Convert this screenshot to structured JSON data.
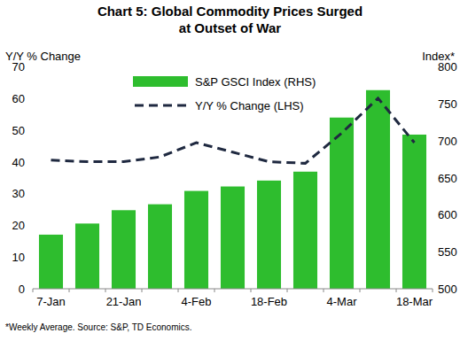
{
  "chart_data": {
    "type": "bar",
    "title": "Chart 5: Global Commodity Prices Surged at Outset of War",
    "ylabel": "Y/Y % Change",
    "y2label": "Index*",
    "footnote": "*Weekly Average. Source: S&P, TD Economics.",
    "categories": [
      "7-Jan",
      null,
      "21-Jan",
      null,
      "4-Feb",
      null,
      "18-Feb",
      null,
      "4-Mar",
      null,
      "18-Mar"
    ],
    "series": [
      {
        "name": "S&P GSCI Index (RHS)",
        "type": "bar",
        "axis": "y2",
        "color": "#2ebd2e",
        "values": [
          573,
          588,
          606,
          614,
          632,
          638,
          646,
          658,
          731,
          768,
          708
        ]
      },
      {
        "name": "Y/Y % Change (LHS)",
        "type": "line",
        "color": "#1f2940",
        "line_style": "dashed",
        "values": [
          40.5,
          40,
          40,
          41.5,
          46,
          43,
          40,
          39.5,
          49,
          60,
          46
        ]
      }
    ],
    "ylim": [
      0,
      70
    ],
    "yticks": [
      0,
      10,
      20,
      30,
      40,
      50,
      60,
      70
    ],
    "y2lim": [
      500,
      800
    ],
    "y2ticks": [
      500,
      550,
      600,
      650,
      700,
      750,
      800
    ],
    "legend": "top",
    "grid": false
  }
}
